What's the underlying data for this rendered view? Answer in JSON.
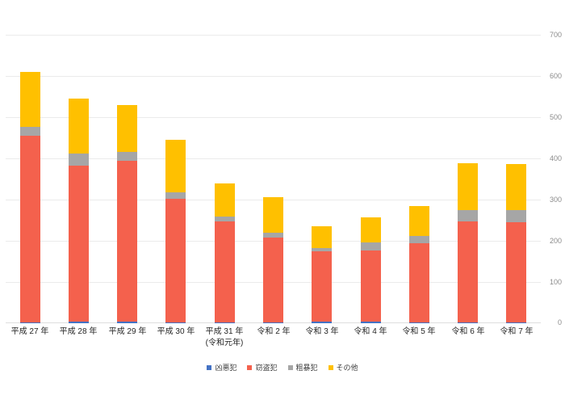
{
  "chart_data": {
    "type": "bar",
    "stacked": true,
    "title": "",
    "xlabel": "",
    "ylabel": "",
    "categories": [
      "平成 27 年",
      "平成 28 年",
      "平成 29 年",
      "平成 30 年",
      "平成 31 年\n(令和元年)",
      "令和 2 年",
      "令和 3 年",
      "令和 4 年",
      "令和 5 年",
      "令和 6 年",
      "令和 7 年"
    ],
    "series": [
      {
        "name": "凶悪犯",
        "color": "#4472C4",
        "values": [
          2,
          3,
          4,
          2,
          2,
          2,
          4,
          4,
          2,
          2,
          2
        ]
      },
      {
        "name": "窃盗犯",
        "color": "#F4614D",
        "values": [
          453,
          379,
          391,
          300,
          245,
          205,
          170,
          172,
          192,
          246,
          243
        ]
      },
      {
        "name": "粗暴犯",
        "color": "#A6A6A6",
        "values": [
          22,
          29,
          21,
          15,
          11,
          12,
          9,
          20,
          17,
          27,
          29
        ]
      },
      {
        "name": "その他",
        "color": "#FFC000",
        "values": [
          133,
          134,
          114,
          128,
          81,
          86,
          52,
          60,
          73,
          113,
          113
        ]
      }
    ],
    "ylim": [
      0,
      700
    ],
    "yticks": [
      0,
      100,
      200,
      300,
      400,
      500,
      600,
      700
    ],
    "grid": true,
    "legend_position": "bottom",
    "y_axis_side": "right"
  },
  "colors": {
    "background": "#FFFFFF",
    "gridline": "#EBEBEB",
    "axis_baseline": "#DEDEDE",
    "y_tick_text": "#8C8C8C",
    "x_tick_text": "#262626",
    "legend_text": "#404040"
  }
}
